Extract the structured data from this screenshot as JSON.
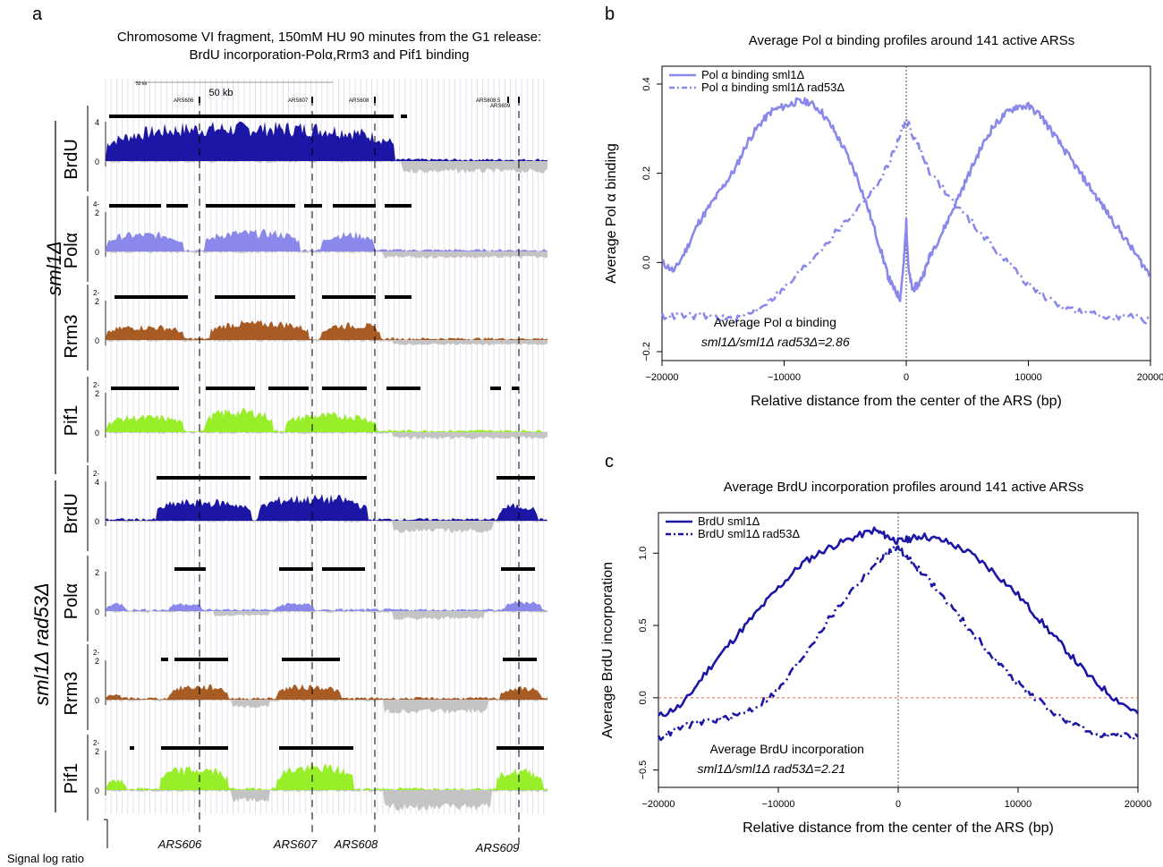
{
  "figure_parts": {
    "panel_a_label": "a",
    "panel_b_label": "b",
    "panel_c_label": "c"
  },
  "panel_a": {
    "title_line1": "Chromosome VI fragment, 150mM HU 90 minutes from the G1 release:",
    "title_line2": "BrdU incorporation-Polα,Rrm3 and Pif1 binding",
    "scale_small": "50 kb",
    "scale_big": "50 kb",
    "ars_small_labels": [
      "ARS606",
      "ARS607",
      "ARS608",
      "ARS608.5",
      "ARS609"
    ],
    "strain_labels": [
      "sml1Δ",
      "sml1Δ rad53Δ"
    ],
    "bottom_axis_label": "Signal log ratio",
    "ars_bottom_labels": [
      "ARS606",
      "ARS607",
      "ARS608",
      "ARS609"
    ],
    "tracks": [
      {
        "name": "BrdU",
        "color": "#1c16a6",
        "top": "4",
        "zero": "0",
        "group": 0
      },
      {
        "name": "Polα",
        "color": "#8a88ea",
        "top": "2",
        "zero": "0",
        "group": 0
      },
      {
        "name": "Rrm3",
        "color": "#a85b22",
        "top": "2",
        "zero": "0",
        "group": 0
      },
      {
        "name": "Pif1",
        "color": "#99ee2a",
        "top": "2",
        "zero": "0",
        "group": 0
      },
      {
        "name": "BrdU",
        "color": "#1c16a6",
        "top": "4",
        "zero": "2",
        "group": 1
      },
      {
        "name": "Polα",
        "color": "#8a88ea",
        "top": "2",
        "zero": "4",
        "group": 1
      },
      {
        "name": "Rrm3",
        "color": "#a85b22",
        "top": "2",
        "zero": "0",
        "group": 1
      },
      {
        "name": "Pif1",
        "color": "#99ee2a",
        "top": "2",
        "zero": "0",
        "group": 1
      }
    ],
    "track_top_dash_labels": [
      "",
      "4-",
      "2-",
      "2-",
      "2-",
      "",
      "2-",
      "2-"
    ]
  },
  "chart_data": [
    {
      "type": "line",
      "panel": "b",
      "title": "Average Pol α binding profiles around 141 active ARSs",
      "xlabel": "Relative distance from the center of the ARS (bp)",
      "ylabel": "Average Pol α binding",
      "xlim": [
        -20000,
        20000
      ],
      "ylim": [
        -0.22,
        0.44
      ],
      "xticks": [
        -20000,
        -10000,
        0,
        10000,
        20000
      ],
      "xtick_labels": [
        "−20000",
        "−10000",
        "0",
        "10000",
        "20000"
      ],
      "yticks": [
        -0.2,
        0.0,
        0.2,
        0.4
      ],
      "ytick_labels": [
        "−0.2",
        "0.0",
        "0.2",
        "0.4"
      ],
      "legend_position": "top-left",
      "annotation_line1": "Average Pol α binding",
      "annotation_line2": "sml1Δ/sml1Δ rad53Δ=2.86",
      "color": "#8a88ea",
      "vline": 0,
      "series": [
        {
          "name": "Pol α binding sml1Δ",
          "style": "solid",
          "x": [
            -20000,
            -19000,
            -18000,
            -17000,
            -16000,
            -15000,
            -14000,
            -13000,
            -12000,
            -11000,
            -10000,
            -9000,
            -8000,
            -7000,
            -6000,
            -5000,
            -4000,
            -3000,
            -2000,
            -1500,
            -1000,
            -500,
            -200,
            0,
            200,
            500,
            1000,
            1500,
            2000,
            3000,
            4000,
            5000,
            6000,
            7000,
            8000,
            9000,
            10000,
            11000,
            12000,
            13000,
            14000,
            15000,
            16000,
            17000,
            18000,
            19000,
            20000
          ],
          "y": [
            0.0,
            -0.02,
            0.03,
            0.09,
            0.13,
            0.17,
            0.21,
            0.27,
            0.31,
            0.34,
            0.35,
            0.36,
            0.36,
            0.34,
            0.3,
            0.25,
            0.19,
            0.11,
            0.02,
            -0.03,
            -0.06,
            -0.08,
            0.0,
            0.09,
            -0.02,
            -0.06,
            -0.05,
            -0.02,
            0.02,
            0.07,
            0.13,
            0.19,
            0.25,
            0.3,
            0.33,
            0.35,
            0.35,
            0.33,
            0.29,
            0.25,
            0.21,
            0.17,
            0.13,
            0.09,
            0.05,
            0.01,
            -0.03
          ]
        },
        {
          "name": "Pol α binding sml1Δ rad53Δ",
          "style": "dashdot",
          "x": [
            -20000,
            -18000,
            -16000,
            -14000,
            -12000,
            -10000,
            -8000,
            -6000,
            -4000,
            -2000,
            -1000,
            0,
            1000,
            2000,
            4000,
            6000,
            8000,
            10000,
            12000,
            14000,
            16000,
            18000,
            20000
          ],
          "y": [
            -0.12,
            -0.12,
            -0.12,
            -0.13,
            -0.1,
            -0.06,
            0.0,
            0.06,
            0.12,
            0.19,
            0.25,
            0.32,
            0.26,
            0.2,
            0.13,
            0.07,
            0.01,
            -0.05,
            -0.09,
            -0.11,
            -0.12,
            -0.12,
            -0.13
          ]
        }
      ]
    },
    {
      "type": "line",
      "panel": "c",
      "title": "Average BrdU incorporation profiles around 141 active ARSs",
      "xlabel": "Relative distance from the center of the ARS (bp)",
      "ylabel": "Average BrdU incorporation",
      "xlim": [
        -20000,
        20000
      ],
      "ylim": [
        -0.62,
        1.28
      ],
      "xticks": [
        -20000,
        -10000,
        0,
        10000,
        20000
      ],
      "xtick_labels": [
        "−20000",
        "−10000",
        "0",
        "10000",
        "20000"
      ],
      "yticks": [
        -0.5,
        0.0,
        0.5,
        1.0
      ],
      "ytick_labels": [
        "−0.5",
        "0.0",
        "0.5",
        "1.0"
      ],
      "legend_position": "top-left",
      "annotation_line1": "Average BrdU incorporation",
      "annotation_line2": "sml1Δ/sml1Δ rad53Δ=2.21",
      "color": "#1c16a6",
      "vline": 0,
      "hline": 0,
      "series": [
        {
          "name": "BrdU sml1Δ",
          "style": "solid",
          "x": [
            -20000,
            -18000,
            -16000,
            -14000,
            -12000,
            -10000,
            -8000,
            -6000,
            -4000,
            -2000,
            -1000,
            0,
            1000,
            2000,
            4000,
            6000,
            8000,
            10000,
            12000,
            14000,
            16000,
            18000,
            20000
          ],
          "y": [
            -0.13,
            -0.05,
            0.18,
            0.38,
            0.57,
            0.76,
            0.93,
            1.03,
            1.1,
            1.16,
            1.12,
            1.08,
            1.1,
            1.12,
            1.08,
            1.0,
            0.87,
            0.71,
            0.52,
            0.33,
            0.14,
            0.0,
            -0.11
          ]
        },
        {
          "name": "BrdU sml1Δ rad53Δ",
          "style": "dashdot",
          "x": [
            -20000,
            -18000,
            -16000,
            -14000,
            -12000,
            -10000,
            -8000,
            -6000,
            -4000,
            -2000,
            -1000,
            0,
            1000,
            2000,
            4000,
            6000,
            8000,
            10000,
            12000,
            14000,
            16000,
            18000,
            20000
          ],
          "y": [
            -0.28,
            -0.2,
            -0.16,
            -0.14,
            -0.07,
            0.05,
            0.28,
            0.52,
            0.73,
            0.92,
            1.0,
            1.04,
            0.95,
            0.87,
            0.67,
            0.47,
            0.27,
            0.1,
            -0.04,
            -0.16,
            -0.24,
            -0.26,
            -0.27
          ]
        }
      ]
    }
  ]
}
